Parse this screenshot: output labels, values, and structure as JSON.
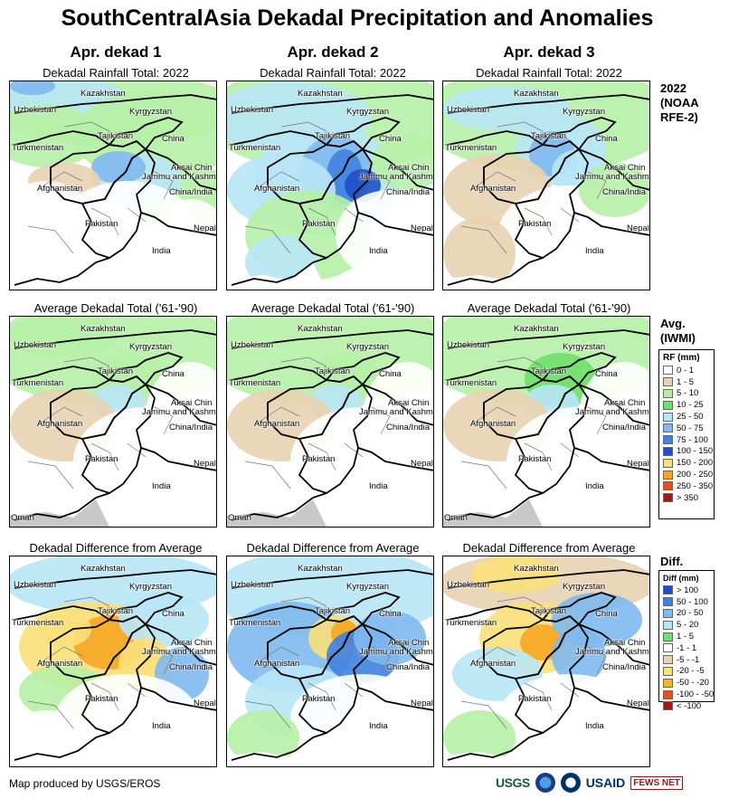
{
  "title": "SouthCentralAsia Dekadal Precipitation and Anomalies",
  "columns": [
    {
      "heading": "Apr. dekad 1"
    },
    {
      "heading": "Apr. dekad 2"
    },
    {
      "heading": "Apr. dekad 3"
    }
  ],
  "rows": [
    {
      "panel_title": "Dekadal Rainfall Total: 2022"
    },
    {
      "panel_title": "Average Dekadal Total ('61-'90)"
    },
    {
      "panel_title": "Dekadal Difference from Average"
    }
  ],
  "side_labels": {
    "row1": [
      "2022",
      "(NOAA",
      "RFE-2)"
    ],
    "row2": [
      "Avg.",
      "(IWMI)"
    ],
    "row3": [
      "Diff."
    ]
  },
  "map_labels": {
    "kazakhstan": "Kazakhstan",
    "uzbekistan": "Uzbekistan",
    "kyrgyzstan": "Kyrgyzstan",
    "tajikistan": "Tajikistan",
    "turkmenistan": "Turkmenistan",
    "china": "China",
    "aksai_chin": "Aksai Chin",
    "jammu_kashmir": "Jammu and Kashmir",
    "china_india": "China/India",
    "afghanistan": "Afghanistan",
    "pakistan": "Pakistan",
    "nepal": "Nepal",
    "india": "India",
    "oman": "Oman"
  },
  "rf_legend": {
    "title": "RF (mm)",
    "items": [
      {
        "label": "0 - 1",
        "color": "#ffffff"
      },
      {
        "label": "1 - 5",
        "color": "#e8d2b0"
      },
      {
        "label": "5 - 10",
        "color": "#b6f0a6"
      },
      {
        "label": "10 - 25",
        "color": "#6fe06a"
      },
      {
        "label": "25 - 50",
        "color": "#b8e6f6"
      },
      {
        "label": "50 - 75",
        "color": "#7fb9ee"
      },
      {
        "label": "75 - 100",
        "color": "#3f82e0"
      },
      {
        "label": "100 - 150",
        "color": "#1f4fc8"
      },
      {
        "label": "150 - 200",
        "color": "#fae07a"
      },
      {
        "label": "200 - 250",
        "color": "#f5a623"
      },
      {
        "label": "250 - 350",
        "color": "#e8501a"
      },
      {
        "label": "> 350",
        "color": "#a01818"
      }
    ]
  },
  "diff_legend": {
    "title": "Diff (mm)",
    "items": [
      {
        "label": "> 100",
        "color": "#1f4fc8"
      },
      {
        "label": "50 - 100",
        "color": "#3f82e0"
      },
      {
        "label": "20 - 50",
        "color": "#7fb9ee"
      },
      {
        "label": "5 - 20",
        "color": "#b8e6f6"
      },
      {
        "label": "1 - 5",
        "color": "#6fe06a"
      },
      {
        "label": "-1 - 1",
        "color": "#ffffff"
      },
      {
        "label": "-5 - -1",
        "color": "#e8d2b0"
      },
      {
        "label": "-20 - -5",
        "color": "#fae07a"
      },
      {
        "label": "-50 - -20",
        "color": "#f5b623"
      },
      {
        "label": "-100 - -50",
        "color": "#e8501a"
      },
      {
        "label": "< -100",
        "color": "#a01818"
      }
    ]
  },
  "footer": "Map produced by USGS/EROS",
  "logos": {
    "usgs": "USGS",
    "usaid": "USAID",
    "fews": "FEWS NET"
  }
}
